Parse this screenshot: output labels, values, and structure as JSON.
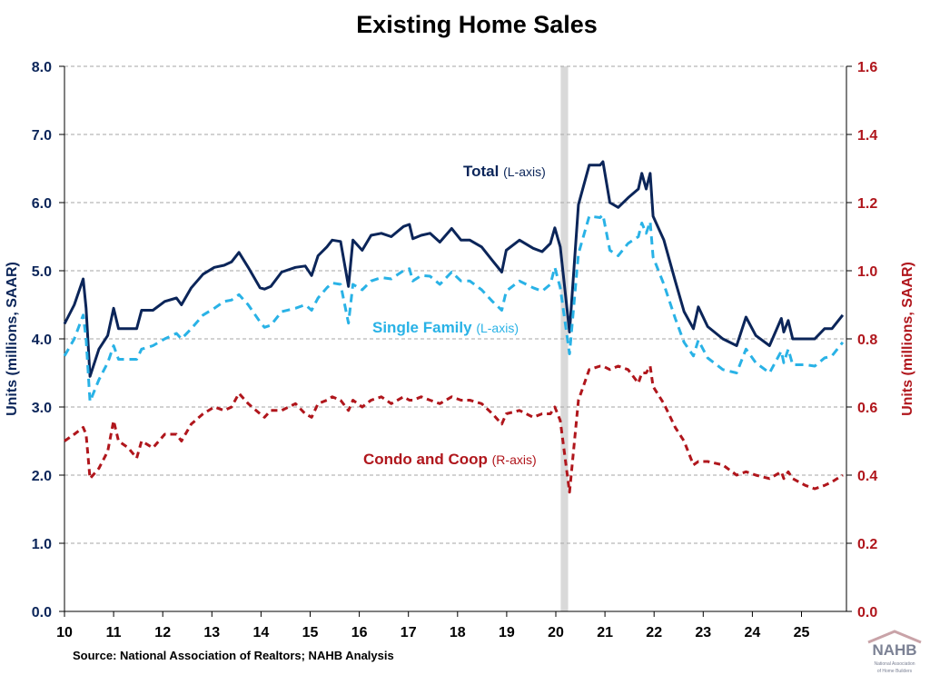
{
  "chart_data": {
    "type": "line",
    "title": "Existing Home Sales",
    "ylabel_left": "Units (millions, SAAR)",
    "ylabel_right": "Units (millions, SAAR)",
    "ylim_left": [
      0,
      8
    ],
    "ylim_right": [
      0,
      1.6
    ],
    "yticks_left": [
      "0.0",
      "1.0",
      "2.0",
      "3.0",
      "4.0",
      "5.0",
      "6.0",
      "7.0",
      "8.0"
    ],
    "yticks_right": [
      "0.0",
      "0.2",
      "0.4",
      "0.6",
      "0.8",
      "1.0",
      "1.2",
      "1.4",
      "1.6"
    ],
    "xlim": [
      10,
      26
    ],
    "xticks": [
      "10",
      "11",
      "12",
      "13",
      "14",
      "15",
      "16",
      "17",
      "18",
      "19",
      "20",
      "21",
      "22",
      "23",
      "24",
      "25"
    ],
    "grid": true,
    "recession_band": [
      20.1,
      20.25
    ],
    "colors": {
      "total": "#0b2559",
      "single_family": "#29b2e6",
      "condo": "#b0161c",
      "recession": "#d9d9d9",
      "grid": "#a6a6a6"
    },
    "x": [
      10.0,
      10.2,
      10.38,
      10.44,
      10.52,
      10.7,
      10.88,
      11.0,
      11.1,
      11.3,
      11.47,
      11.57,
      11.8,
      12.04,
      12.28,
      12.38,
      12.58,
      12.82,
      13.05,
      13.25,
      13.4,
      13.55,
      13.74,
      13.98,
      14.07,
      14.2,
      14.42,
      14.7,
      14.9,
      15.03,
      15.16,
      15.34,
      15.45,
      15.62,
      15.78,
      15.87,
      16.06,
      16.24,
      16.45,
      16.65,
      16.9,
      17.02,
      17.09,
      17.26,
      17.44,
      17.64,
      17.88,
      18.07,
      18.25,
      18.49,
      18.71,
      18.9,
      18.99,
      19.26,
      19.54,
      19.72,
      19.89,
      19.98,
      20.09,
      20.28,
      20.46,
      20.68,
      20.9,
      20.96,
      21.1,
      21.27,
      21.47,
      21.68,
      21.75,
      21.84,
      21.92,
      21.98,
      22.2,
      22.43,
      22.61,
      22.8,
      22.9,
      23.09,
      23.4,
      23.68,
      23.87,
      24.07,
      24.35,
      24.59,
      24.64,
      24.73,
      24.82,
      25.08,
      25.27,
      25.47,
      25.62,
      25.84
    ],
    "series": [
      {
        "name": "Total",
        "axis_note": "(L-axis)",
        "axis": "left",
        "style": "solid",
        "values": [
          4.22,
          4.5,
          4.88,
          4.45,
          3.45,
          3.85,
          4.05,
          4.45,
          4.15,
          4.15,
          4.15,
          4.42,
          4.42,
          4.55,
          4.6,
          4.5,
          4.75,
          4.95,
          5.05,
          5.08,
          5.13,
          5.27,
          5.05,
          4.75,
          4.73,
          4.77,
          4.98,
          5.05,
          5.07,
          4.93,
          5.22,
          5.35,
          5.45,
          5.43,
          4.77,
          5.45,
          5.3,
          5.52,
          5.55,
          5.5,
          5.65,
          5.68,
          5.47,
          5.52,
          5.55,
          5.42,
          5.62,
          5.45,
          5.45,
          5.35,
          5.15,
          4.98,
          5.3,
          5.45,
          5.33,
          5.28,
          5.4,
          5.63,
          5.35,
          4.1,
          5.97,
          6.55,
          6.55,
          6.6,
          6.0,
          5.93,
          6.07,
          6.2,
          6.43,
          6.2,
          6.43,
          5.8,
          5.45,
          4.85,
          4.4,
          4.15,
          4.47,
          4.18,
          4.0,
          3.9,
          4.32,
          4.05,
          3.9,
          4.3,
          4.1,
          4.27,
          4.0,
          4.0,
          4.0,
          4.15,
          4.15,
          4.35
        ]
      },
      {
        "name": "Single Family",
        "axis_note": "(L-axis)",
        "axis": "left",
        "style": "dashed",
        "values": [
          3.75,
          4.0,
          4.35,
          4.0,
          3.08,
          3.4,
          3.65,
          3.9,
          3.7,
          3.7,
          3.7,
          3.85,
          3.9,
          4.0,
          4.08,
          4.0,
          4.15,
          4.35,
          4.45,
          4.55,
          4.57,
          4.65,
          4.5,
          4.25,
          4.17,
          4.2,
          4.4,
          4.45,
          4.5,
          4.42,
          4.6,
          4.75,
          4.82,
          4.8,
          4.23,
          4.8,
          4.72,
          4.85,
          4.9,
          4.88,
          5.0,
          5.03,
          4.85,
          4.93,
          4.92,
          4.8,
          4.98,
          4.85,
          4.85,
          4.72,
          4.55,
          4.42,
          4.7,
          4.85,
          4.75,
          4.7,
          4.8,
          5.05,
          4.75,
          3.78,
          5.25,
          5.8,
          5.78,
          5.82,
          5.3,
          5.22,
          5.4,
          5.5,
          5.7,
          5.55,
          5.72,
          5.2,
          4.8,
          4.3,
          3.95,
          3.75,
          3.98,
          3.72,
          3.55,
          3.5,
          3.85,
          3.65,
          3.5,
          3.82,
          3.65,
          3.85,
          3.62,
          3.62,
          3.6,
          3.72,
          3.75,
          3.95
        ]
      },
      {
        "name": "Condo and Coop",
        "axis_note": "(R-axis)",
        "axis": "right",
        "style": "dashed",
        "values": [
          0.5,
          0.52,
          0.54,
          0.52,
          0.39,
          0.42,
          0.47,
          0.56,
          0.5,
          0.48,
          0.45,
          0.5,
          0.48,
          0.52,
          0.52,
          0.5,
          0.55,
          0.58,
          0.6,
          0.59,
          0.6,
          0.64,
          0.61,
          0.58,
          0.57,
          0.59,
          0.59,
          0.61,
          0.58,
          0.57,
          0.61,
          0.62,
          0.63,
          0.62,
          0.59,
          0.62,
          0.6,
          0.62,
          0.63,
          0.61,
          0.63,
          0.62,
          0.62,
          0.63,
          0.62,
          0.61,
          0.63,
          0.62,
          0.62,
          0.61,
          0.58,
          0.55,
          0.58,
          0.59,
          0.57,
          0.58,
          0.58,
          0.6,
          0.56,
          0.35,
          0.62,
          0.71,
          0.72,
          0.72,
          0.71,
          0.72,
          0.71,
          0.67,
          0.7,
          0.7,
          0.72,
          0.66,
          0.61,
          0.54,
          0.5,
          0.43,
          0.44,
          0.44,
          0.43,
          0.4,
          0.41,
          0.4,
          0.39,
          0.41,
          0.39,
          0.41,
          0.39,
          0.37,
          0.36,
          0.37,
          0.38,
          0.4
        ]
      }
    ]
  },
  "source": "Source: National Association of Realtors; NAHB Analysis",
  "logo": {
    "text": "NAHB",
    "subtitle": "National Association of Home Builders"
  }
}
